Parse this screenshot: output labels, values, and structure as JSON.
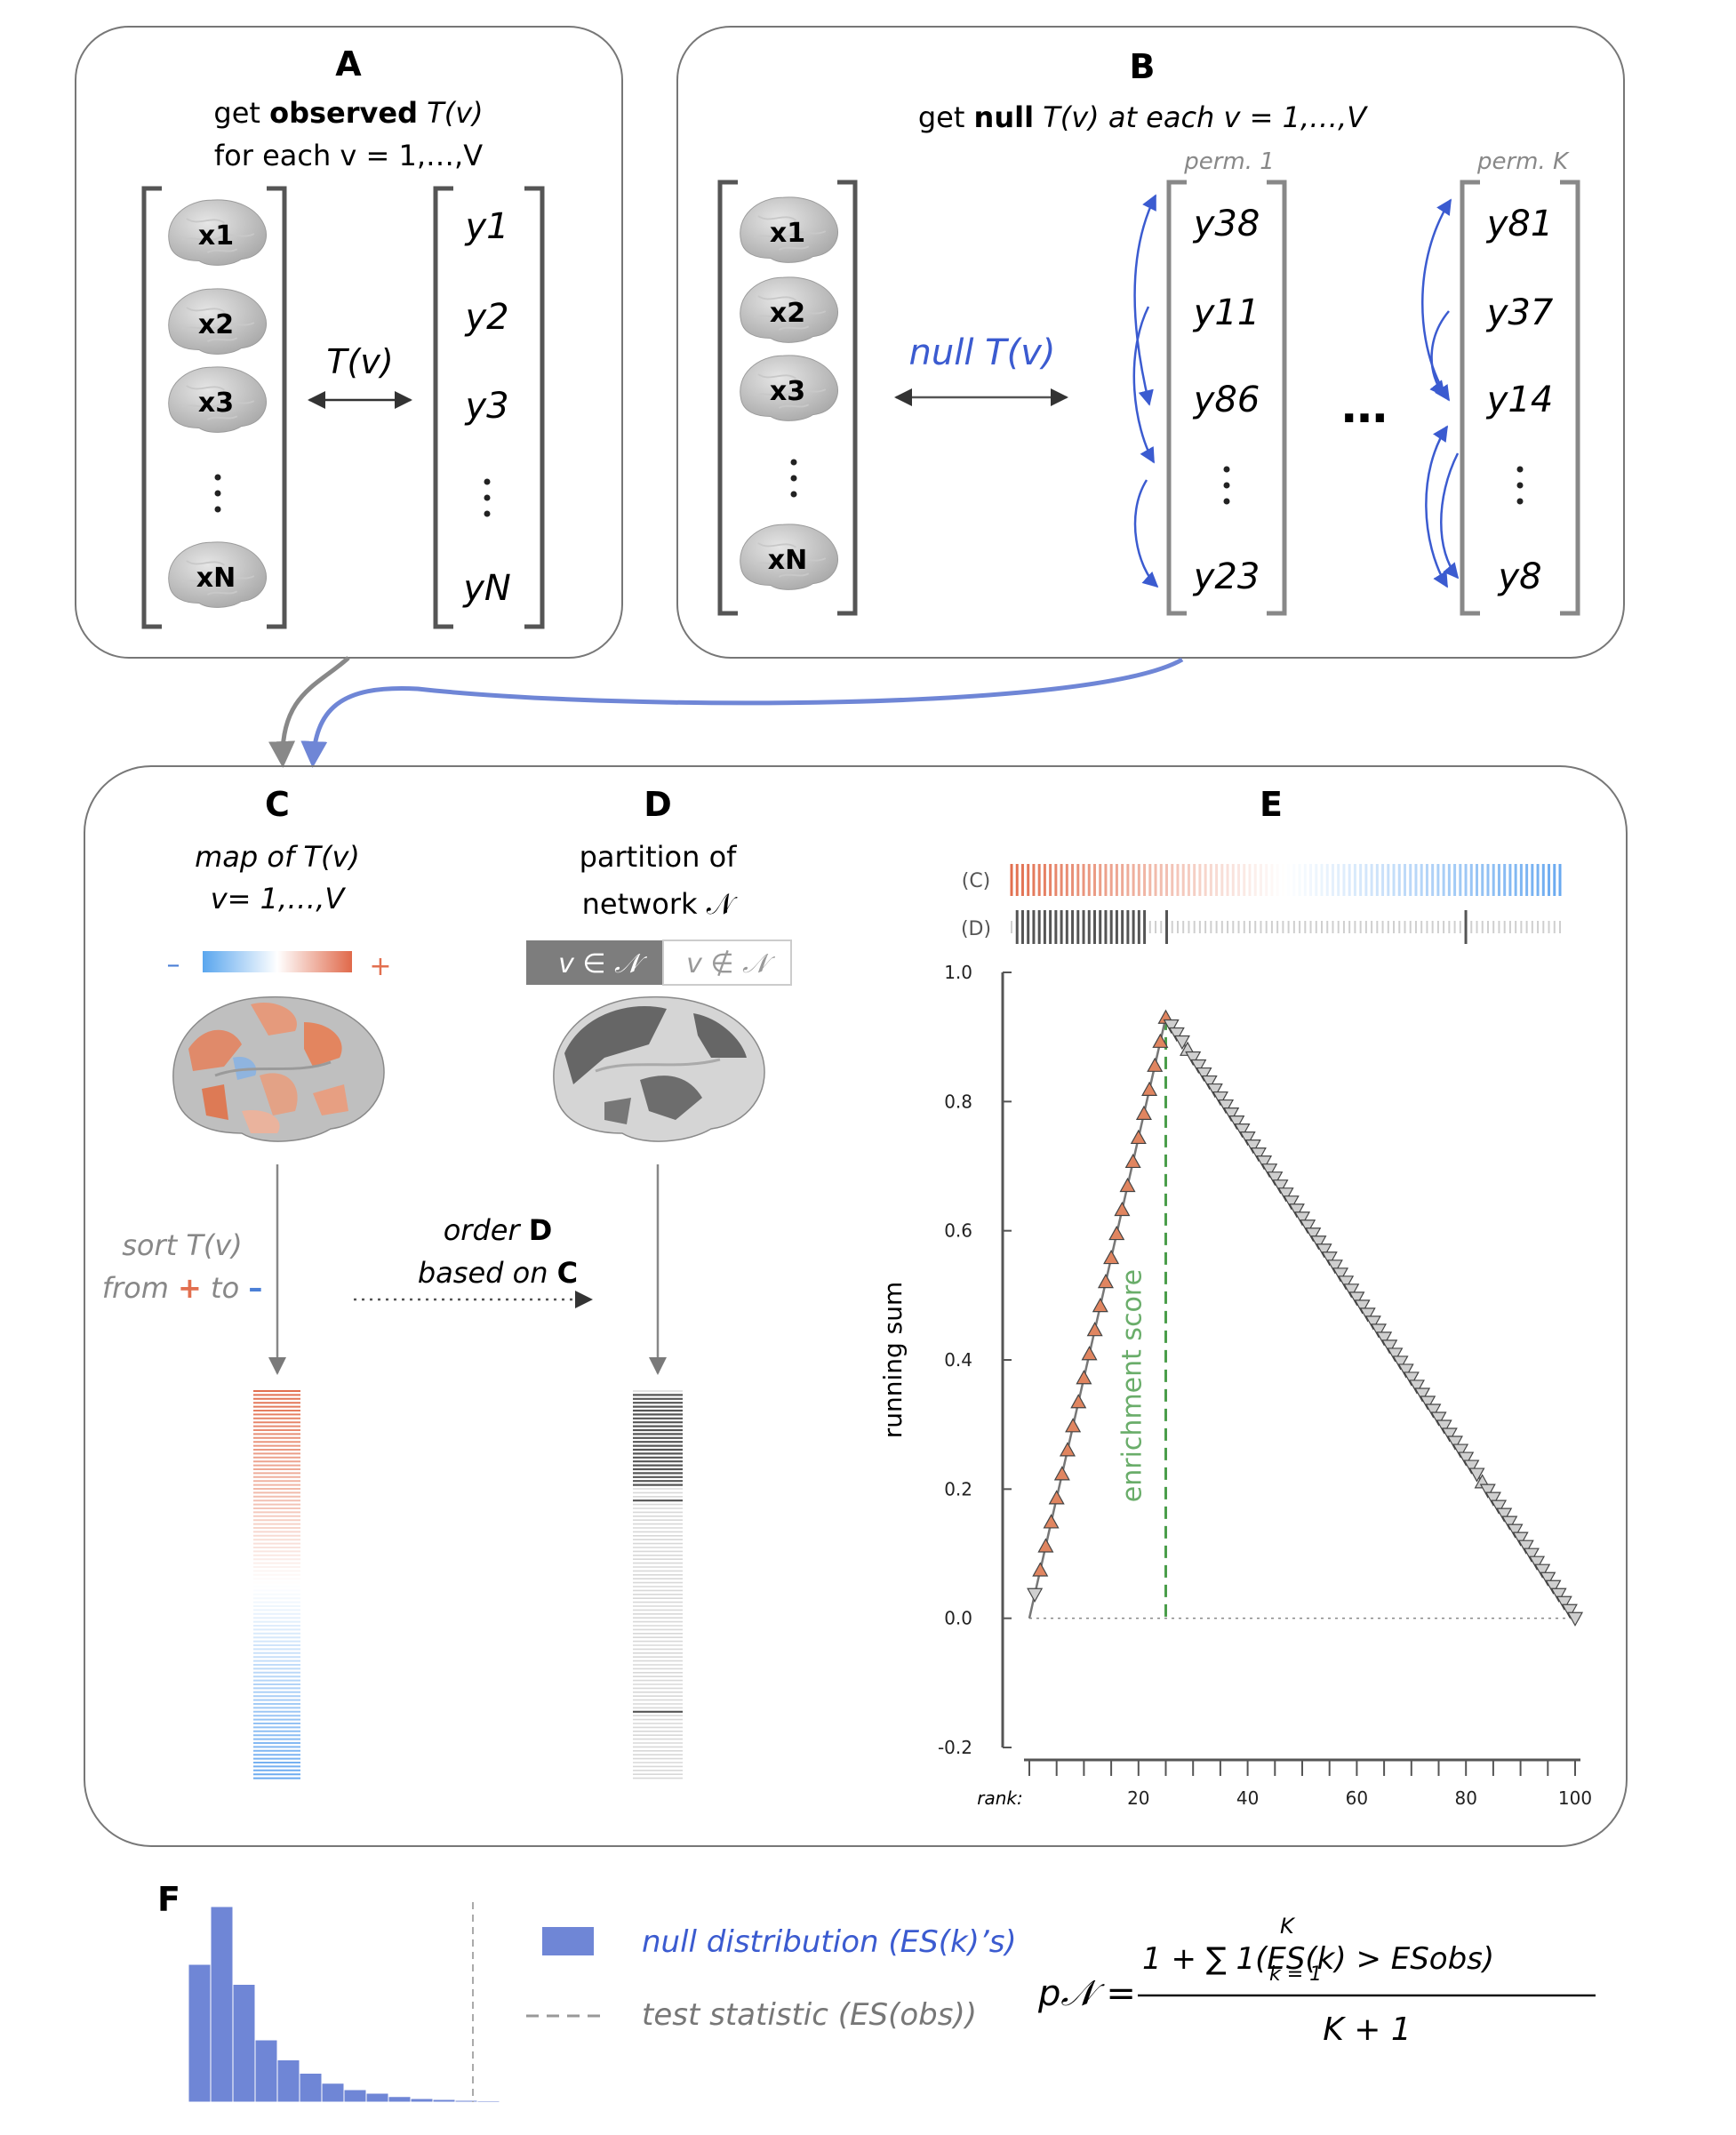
{
  "panel_a": {
    "letter": "A",
    "line1_pre": "get ",
    "line1_bold": "observed",
    "line1_post": " T(v)",
    "line2": "for each v = 1,…,V",
    "x_items": [
      "x1",
      "x2",
      "x3",
      "xN"
    ],
    "y_items": [
      "y1",
      "y2",
      "y3",
      "yN"
    ],
    "arrow_label": "T(v)"
  },
  "panel_b": {
    "letter": "B",
    "line1_pre": "get ",
    "line1_bold": "null",
    "line1_post": " T(v) at each v = 1,…,V",
    "perm1_label": "perm. 1",
    "permK_label": "perm. K",
    "arrow_label": "null T(v)",
    "perm1_items": [
      "y38",
      "y11",
      "y86",
      "y23"
    ],
    "permK_items": [
      "y81",
      "y37",
      "y14",
      "y8"
    ],
    "ellipsis": "…"
  },
  "panel_c": {
    "letter": "C",
    "line1": "map of T(v)",
    "line2": "v= 1,…,V",
    "minus": "–",
    "plus": "+",
    "sort_line1": "sort T(v)",
    "sort_line2_pre": "from ",
    "sort_plus": "+",
    "sort_mid": " to ",
    "sort_minus": "–"
  },
  "panel_d": {
    "letter": "D",
    "line1": "partition of",
    "line2": "network 𝒩",
    "in_label": "v ∈ 𝒩",
    "out_label": "v ∉ 𝒩",
    "order_line1_pre": "order ",
    "order_line1_bold": "D",
    "order_line2_pre": "based on ",
    "order_line2_bold": "C"
  },
  "panel_e": {
    "letter": "E",
    "strip_c_label": "(C)",
    "strip_d_label": "(D)",
    "annotation": "enrichment score"
  },
  "panel_f": {
    "letter": "F",
    "legend_null": "null distribution (ES(k)’s)",
    "legend_test": "test statistic (ES(obs))",
    "formula_lhs": "p𝒩 =",
    "formula_num": "1 + ∑ 1(ES(k) > ESobs)",
    "formula_sum_top": "K",
    "formula_sum_bottom": "k = 1",
    "formula_den": "K + 1"
  },
  "chart_data": {
    "type": "line",
    "ylabel": "running sum",
    "xlabel": "rank:",
    "xlim": [
      0,
      100
    ],
    "ylim": [
      -0.2,
      1.0
    ],
    "xticks": [
      20,
      40,
      60,
      80,
      100
    ],
    "yticks": [
      -0.2,
      0.0,
      0.2,
      0.4,
      0.6,
      0.8,
      1.0
    ],
    "enrichment_score": 0.93,
    "es_rank": 25,
    "series": [
      {
        "x": [
          0,
          25,
          100
        ],
        "y": [
          0.0,
          0.93,
          0.0
        ],
        "in_network_ranks": [
          2,
          3,
          4,
          5,
          6,
          7,
          8,
          9,
          10,
          11,
          12,
          13,
          14,
          15,
          16,
          17,
          18,
          19,
          20,
          21,
          22,
          23,
          24,
          25,
          29,
          83
        ]
      }
    ]
  },
  "histogram": {
    "values": [
      0.62,
      0.88,
      0.53,
      0.28,
      0.19,
      0.13,
      0.085,
      0.056,
      0.04,
      0.025,
      0.016,
      0.012,
      0.008,
      0.006,
      0.004,
      0.003,
      0.002,
      0.0015,
      0.001,
      0.001
    ],
    "test_statistic_bin": 10,
    "colors": {
      "bar": "#6f86d6"
    }
  },
  "colors": {
    "positive": "#e26f4f",
    "negative": "#6aaaf0",
    "blue_arrow": "#3b5bd0",
    "es_green": "#4a9d4a",
    "grey": "#777777"
  }
}
